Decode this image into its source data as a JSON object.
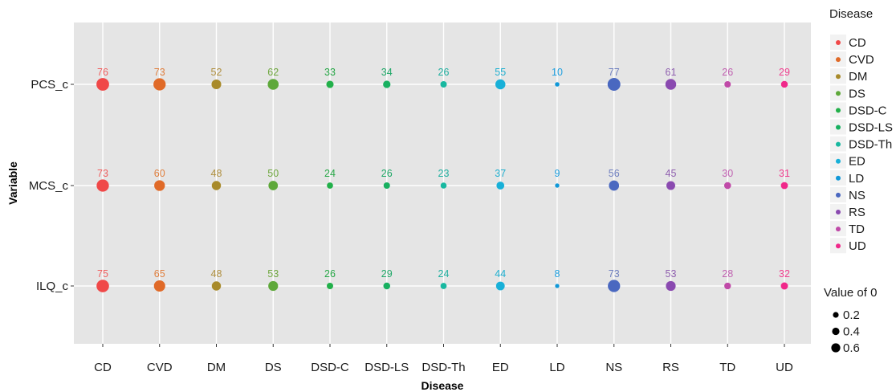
{
  "chart_data": {
    "type": "scatter",
    "xlabel": "Disease",
    "ylabel": "Variable",
    "categories": [
      "CD",
      "CVD",
      "DM",
      "DS",
      "DSD-C",
      "DSD-LS",
      "DSD-Th",
      "ED",
      "LD",
      "NS",
      "RS",
      "TD",
      "UD"
    ],
    "rows": [
      "PCS_c",
      "MCS_c",
      "ILQ_c"
    ],
    "series": [
      {
        "name": "PCS_c",
        "values": [
          76,
          73,
          52,
          62,
          33,
          34,
          26,
          55,
          10,
          77,
          61,
          26,
          29
        ]
      },
      {
        "name": "MCS_c",
        "values": [
          73,
          60,
          48,
          50,
          24,
          26,
          23,
          37,
          9,
          56,
          45,
          30,
          31
        ]
      },
      {
        "name": "ILQ_c",
        "values": [
          75,
          65,
          48,
          53,
          26,
          29,
          24,
          44,
          8,
          73,
          53,
          28,
          32
        ]
      }
    ],
    "colors": {
      "CD": "#f8766d",
      "CVD": "#e58700",
      "DM": "#c99800",
      "DS": "#a3a500",
      "DSD-C": "#6bb100",
      "DSD-LS": "#00ba38",
      "DSD-Th": "#00bf7d",
      "ED": "#00c0af",
      "LD": "#00bcd8",
      "NS": "#00b0f6",
      "RS": "#619cff",
      "TD": "#b983ff",
      "UD": "#e76bf3"
    },
    "point_colors": {
      "CD": "#f04848",
      "CVD": "#e06a28",
      "DM": "#a88a2a",
      "DS": "#5ea83a",
      "DSD-C": "#22b04a",
      "DSD-LS": "#18b060",
      "DSD-Th": "#18b8a0",
      "ED": "#18b0d8",
      "LD": "#1098d8",
      "NS": "#4a68c0",
      "RS": "#8a4ab0",
      "TD": "#c04aa8",
      "UD": "#f0288a"
    },
    "label_colors": {
      "CD": "#f06060",
      "CVD": "#e08040",
      "DM": "#b09040",
      "DS": "#70a840",
      "DSD-C": "#28a848",
      "DSD-LS": "#20a868",
      "DSD-Th": "#20b0a0",
      "ED": "#20b0d0",
      "LD": "#20a0e0",
      "NS": "#7080c0",
      "RS": "#9060b0",
      "TD": "#c060b0",
      "UD": "#f04090"
    },
    "legend": {
      "title": "Disease",
      "entries": [
        "CD",
        "CVD",
        "DM",
        "DS",
        "DSD-C",
        "DSD-LS",
        "DSD-Th",
        "ED",
        "LD",
        "NS",
        "RS",
        "TD",
        "UD"
      ],
      "position": "right"
    },
    "size_legend": {
      "title": "Value of 0",
      "entries": [
        "0.2",
        "0.4",
        "0.6"
      ]
    },
    "grid": true,
    "panel_background": "#e5e5e5",
    "grid_color": "#ffffff"
  }
}
